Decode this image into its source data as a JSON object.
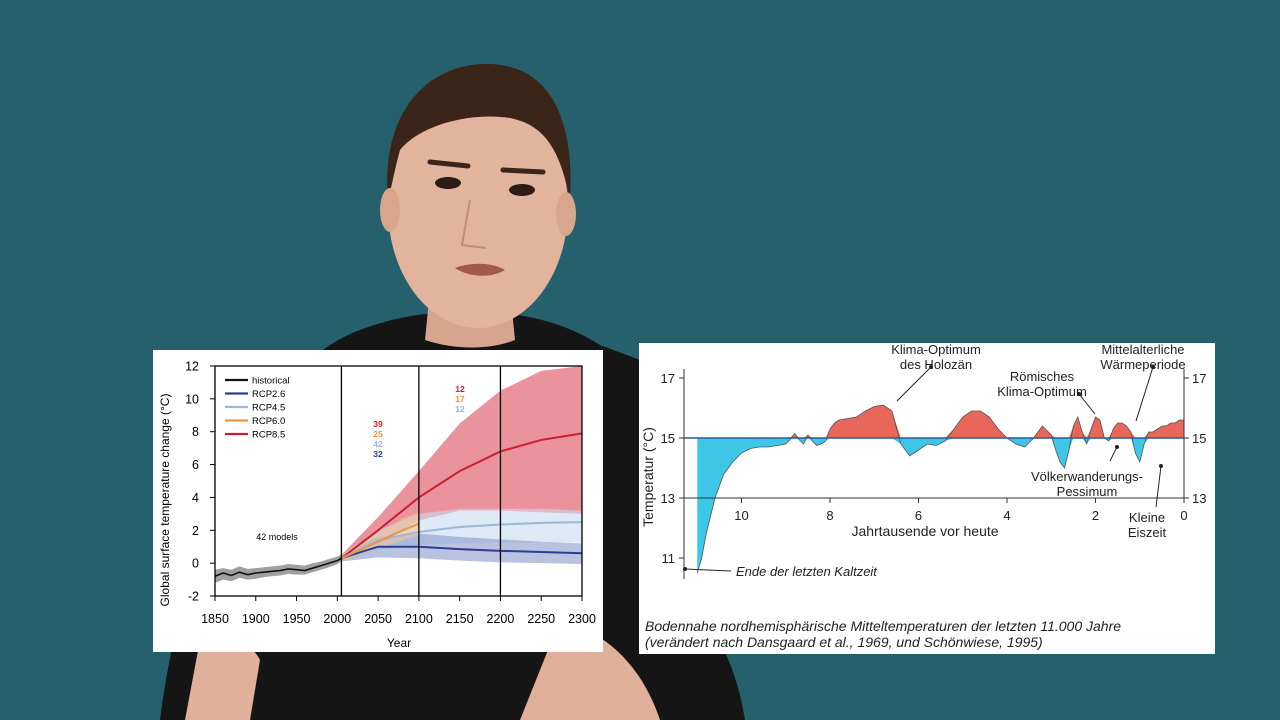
{
  "colors": {
    "background": "#26606c",
    "historical": "#111111",
    "rcp26": "#2a3f8f",
    "rcp45": "#9ab8d8",
    "rcp60": "#e8954a",
    "rcp85": "#cc1f2e",
    "warm": "#e8665a",
    "cold": "#3ec6e8"
  },
  "chart_data": [
    {
      "type": "line",
      "ylabel": "Global surface temperature change (°C)",
      "xlabel": "Year",
      "xlim": [
        1850,
        2300
      ],
      "ylim": [
        -2,
        12
      ],
      "xticks": [
        "1850",
        "1900",
        "1950",
        "2000",
        "2050",
        "2100",
        "2150",
        "2200",
        "2250",
        "2300"
      ],
      "yticks": [
        "-2",
        "0",
        "2",
        "4",
        "6",
        "8",
        "10",
        "12"
      ],
      "legend_position": "top-left",
      "annotation": "42 models",
      "vertical_lines": [
        2005,
        2100,
        2200
      ],
      "model_counts": {
        "2100": [
          {
            "series": "RCP8.5",
            "label": "39"
          },
          {
            "series": "RCP6.0",
            "label": "25"
          },
          {
            "series": "RCP4.5",
            "label": "42"
          },
          {
            "series": "RCP2.6",
            "label": "32"
          }
        ],
        "2200": [
          {
            "series": "RCP8.5",
            "label": "12"
          },
          {
            "series": "RCP6.0",
            "label": "17"
          },
          {
            "series": "RCP4.5",
            "label": "12"
          }
        ]
      },
      "series": [
        {
          "name": "historical",
          "x": [
            1850,
            1860,
            1870,
            1880,
            1890,
            1900,
            1910,
            1920,
            1930,
            1940,
            1950,
            1960,
            1970,
            1980,
            1990,
            2000,
            2005
          ],
          "values": [
            -0.8,
            -0.6,
            -0.75,
            -0.55,
            -0.7,
            -0.6,
            -0.55,
            -0.5,
            -0.45,
            -0.35,
            -0.4,
            -0.45,
            -0.3,
            -0.15,
            0.0,
            0.15,
            0.3
          ],
          "lower": [
            -1.2,
            -1.0,
            -1.1,
            -0.9,
            -1.0,
            -0.95,
            -0.85,
            -0.8,
            -0.75,
            -0.65,
            -0.7,
            -0.7,
            -0.55,
            -0.4,
            -0.25,
            -0.05,
            0.1
          ],
          "upper": [
            -0.4,
            -0.3,
            -0.4,
            -0.2,
            -0.35,
            -0.3,
            -0.25,
            -0.2,
            -0.15,
            -0.05,
            -0.1,
            -0.15,
            0.0,
            0.1,
            0.25,
            0.4,
            0.5
          ]
        },
        {
          "name": "RCP2.6",
          "x": [
            2005,
            2050,
            2100,
            2150,
            2200,
            2250,
            2300
          ],
          "values": [
            0.3,
            1.0,
            1.0,
            0.85,
            0.75,
            0.68,
            0.6
          ],
          "lower": [
            0.1,
            0.35,
            0.3,
            0.15,
            0.05,
            0.0,
            -0.05
          ],
          "upper": [
            0.5,
            1.6,
            1.8,
            1.6,
            1.45,
            1.3,
            1.2
          ]
        },
        {
          "name": "RCP4.5",
          "x": [
            2005,
            2050,
            2100,
            2150,
            2200,
            2250,
            2300
          ],
          "values": [
            0.3,
            1.4,
            1.9,
            2.2,
            2.35,
            2.45,
            2.5
          ],
          "lower": [
            0.1,
            0.8,
            1.1,
            1.2,
            1.25,
            1.25,
            1.25
          ],
          "upper": [
            0.5,
            2.0,
            3.0,
            3.3,
            3.3,
            3.3,
            3.2
          ]
        },
        {
          "name": "RCP6.0",
          "x": [
            2005,
            2050,
            2080,
            2100
          ],
          "values": [
            0.3,
            1.3,
            2.0,
            2.4
          ],
          "lower": [
            0.1,
            0.9,
            1.4,
            1.7
          ],
          "upper": [
            0.5,
            1.8,
            2.7,
            3.1
          ]
        },
        {
          "name": "RCP8.5",
          "x": [
            2005,
            2050,
            2100,
            2150,
            2200,
            2250,
            2300
          ],
          "values": [
            0.3,
            2.0,
            4.0,
            5.6,
            6.8,
            7.5,
            7.9
          ],
          "lower": [
            0.1,
            1.3,
            2.6,
            3.2,
            3.2,
            3.1,
            3.0
          ],
          "upper": [
            0.5,
            2.8,
            5.6,
            8.5,
            10.5,
            11.7,
            12.0
          ]
        }
      ]
    },
    {
      "type": "area",
      "ylabel": "Temperatur (°C)",
      "xlabel": "Jahrtausende vor heute",
      "xlim": [
        11.3,
        0
      ],
      "ylim": [
        10.3,
        17.3
      ],
      "baseline": 15,
      "xticks": [
        "10",
        "8",
        "6",
        "4",
        "2",
        "0"
      ],
      "yticks_left": [
        "11",
        "13",
        "15",
        "17"
      ],
      "yticks_right": [
        "13",
        "15",
        "17"
      ],
      "x": [
        11.0,
        10.9,
        10.8,
        10.6,
        10.4,
        10.2,
        10.0,
        9.8,
        9.6,
        9.4,
        9.2,
        9.0,
        8.9,
        8.8,
        8.7,
        8.6,
        8.5,
        8.4,
        8.3,
        8.2,
        8.1,
        8.0,
        7.9,
        7.8,
        7.6,
        7.4,
        7.2,
        7.0,
        6.8,
        6.6,
        6.4,
        6.2,
        6.0,
        5.8,
        5.6,
        5.4,
        5.2,
        5.0,
        4.8,
        4.6,
        4.4,
        4.2,
        4.0,
        3.8,
        3.6,
        3.4,
        3.2,
        3.0,
        2.9,
        2.8,
        2.7,
        2.6,
        2.5,
        2.4,
        2.3,
        2.2,
        2.1,
        2.0,
        1.9,
        1.8,
        1.7,
        1.6,
        1.5,
        1.4,
        1.3,
        1.2,
        1.1,
        1.0,
        0.9,
        0.8,
        0.7,
        0.6,
        0.5,
        0.4,
        0.3,
        0.2,
        0.1,
        0.0
      ],
      "values": [
        10.5,
        11.0,
        11.8,
        13.0,
        13.8,
        14.2,
        14.5,
        14.65,
        14.7,
        14.7,
        14.75,
        14.8,
        14.95,
        15.15,
        14.95,
        14.8,
        15.1,
        14.9,
        14.75,
        14.8,
        14.9,
        15.3,
        15.5,
        15.6,
        15.65,
        15.7,
        15.9,
        16.05,
        16.1,
        15.9,
        14.8,
        14.4,
        14.6,
        14.8,
        14.75,
        14.9,
        15.3,
        15.7,
        15.9,
        15.9,
        15.7,
        15.3,
        15.0,
        14.8,
        14.7,
        15.0,
        15.4,
        15.1,
        14.6,
        14.2,
        14.0,
        14.6,
        15.4,
        15.7,
        15.2,
        14.8,
        15.3,
        15.7,
        15.6,
        15.0,
        14.9,
        15.3,
        15.5,
        15.5,
        15.4,
        15.2,
        14.5,
        14.2,
        14.8,
        15.2,
        15.2,
        15.3,
        15.4,
        15.4,
        15.5,
        15.5,
        15.6,
        15.6
      ],
      "annotations": [
        {
          "label": [
            "Klima-Optimum",
            "des Holozän"
          ],
          "x": 6.5,
          "value": 16.1
        },
        {
          "label": [
            "Römisches",
            "Klima-Optimum"
          ],
          "x": 2.0,
          "value": 15.7
        },
        {
          "label": [
            "Mittelalterliche",
            "Wärmeperiode"
          ],
          "x": 1.0,
          "value": 15.4
        },
        {
          "label": [
            "Völkerwanderungs-",
            "Pessimum"
          ],
          "x": 1.7,
          "value": 14.8
        },
        {
          "label": [
            "Kleine",
            "Eiszeit"
          ],
          "x": 0.6,
          "value": 14.3
        },
        {
          "label": [
            "Ende der letzten Kaltzeit"
          ],
          "x": 11.0,
          "value": 10.5
        }
      ],
      "caption": [
        "Bodennahe nordhemisphärische Mitteltemperaturen der letzten 11.000 Jahre",
        "(verändert nach Dansgaard et al., 1969, und Schönwiese, 1995)"
      ]
    }
  ]
}
